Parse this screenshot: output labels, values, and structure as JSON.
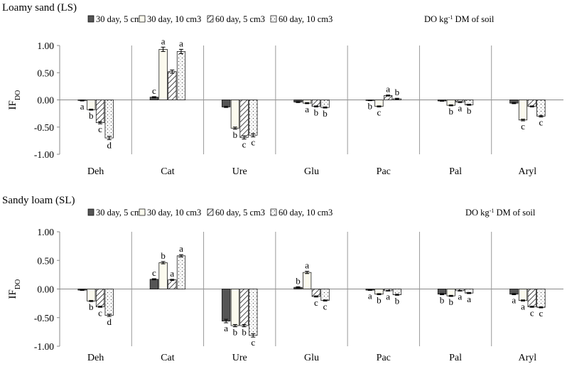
{
  "legend_suffix": "DO kg",
  "legend_suffix_sup": "-1",
  "legend_suffix_tail": " DM of soil",
  "y_axis_label": "IF",
  "y_axis_label_sub": "DO",
  "series_styles": [
    {
      "fill": "#555555"
    },
    {
      "fill": "#fbfaee"
    },
    {
      "fill": "hatch"
    },
    {
      "fill": "dots"
    }
  ],
  "chart_data": [
    {
      "type": "bar",
      "title": "Loamy sand (LS)",
      "categories": [
        "Deh",
        "Cat",
        "Ure",
        "Glu",
        "Pac",
        "Pal",
        "Aryl"
      ],
      "ylim": [
        -1.0,
        1.0
      ],
      "yticks": [
        "1.00",
        "0.50",
        "0.00",
        "-0.50",
        "-1.00"
      ],
      "grid": false,
      "legend": "top",
      "series": [
        {
          "name": "30 day, 5 cm3",
          "values": [
            -0.01,
            0.05,
            -0.13,
            -0.04,
            -0.01,
            -0.02,
            -0.06
          ],
          "errors": [
            0.01,
            0.01,
            0.01,
            0.01,
            0.005,
            0.005,
            0.01
          ],
          "labels": [
            "a",
            "c",
            "",
            "",
            "b",
            "",
            ""
          ]
        },
        {
          "name": "30 day, 10  cm3",
          "values": [
            -0.18,
            0.93,
            -0.52,
            -0.06,
            -0.12,
            -0.1,
            -0.37
          ],
          "errors": [
            0.01,
            0.04,
            0.02,
            0.01,
            0.01,
            0.01,
            0.015
          ],
          "labels": [
            "b",
            "a",
            "b",
            "a",
            "c",
            "b",
            "c"
          ]
        },
        {
          "name": "60 day, 5  cm3",
          "values": [
            -0.42,
            0.52,
            -0.69,
            -0.12,
            0.08,
            -0.04,
            -0.12
          ],
          "errors": [
            0.02,
            0.03,
            0.03,
            0.01,
            0.01,
            0.01,
            0.01
          ],
          "labels": [
            "c",
            "",
            "c",
            "b",
            "a",
            "a",
            ""
          ]
        },
        {
          "name": "60 day, 10  cm3",
          "values": [
            -0.7,
            0.89,
            -0.65,
            -0.14,
            0.02,
            -0.09,
            -0.3
          ],
          "errors": [
            0.03,
            0.04,
            0.03,
            0.01,
            0.01,
            0.01,
            0.015
          ],
          "labels": [
            "d",
            "a",
            "c",
            "b",
            "b",
            "b",
            "c"
          ]
        }
      ]
    },
    {
      "type": "bar",
      "title": "Sandy loam (SL)",
      "categories": [
        "Deh",
        "Cat",
        "Ure",
        "Glu",
        "Pac",
        "Pal",
        "Aryl"
      ],
      "ylim": [
        -1.0,
        1.0
      ],
      "yticks": [
        "1.00",
        "0.50",
        "0.00",
        "-0.50",
        "-1.00"
      ],
      "grid": false,
      "legend": "top",
      "series": [
        {
          "name": "30 day, 5 cm3",
          "values": [
            -0.02,
            0.17,
            -0.56,
            0.03,
            -0.02,
            -0.09,
            -0.09
          ],
          "errors": [
            0.005,
            0.01,
            0.03,
            0.01,
            0.005,
            0.01,
            0.01
          ],
          "labels": [
            "",
            "c",
            "a",
            "b",
            "a",
            "b",
            "a"
          ]
        },
        {
          "name": "30 day, 10  cm3",
          "values": [
            -0.21,
            0.46,
            -0.64,
            0.29,
            -0.09,
            -0.12,
            -0.2
          ],
          "errors": [
            0.01,
            0.02,
            0.02,
            0.02,
            0.01,
            0.01,
            0.01
          ],
          "labels": [
            "b",
            "b",
            "b",
            "a",
            "b",
            "b",
            "a"
          ]
        },
        {
          "name": "60 day, 5  cm3",
          "values": [
            -0.31,
            0.16,
            -0.64,
            -0.13,
            -0.03,
            -0.03,
            -0.31
          ],
          "errors": [
            0.01,
            0.01,
            0.02,
            0.01,
            0.005,
            0.005,
            0.01
          ],
          "labels": [
            "c",
            "a",
            "b",
            "c",
            "a",
            "a",
            "c"
          ]
        },
        {
          "name": "60 day, 10  cm3",
          "values": [
            -0.46,
            0.58,
            -0.81,
            -0.2,
            -0.1,
            -0.07,
            -0.32
          ],
          "errors": [
            0.02,
            0.02,
            0.03,
            0.01,
            0.01,
            0.01,
            0.01
          ],
          "labels": [
            "d",
            "a",
            "c",
            "c",
            "b",
            "a",
            "c"
          ]
        }
      ]
    }
  ]
}
